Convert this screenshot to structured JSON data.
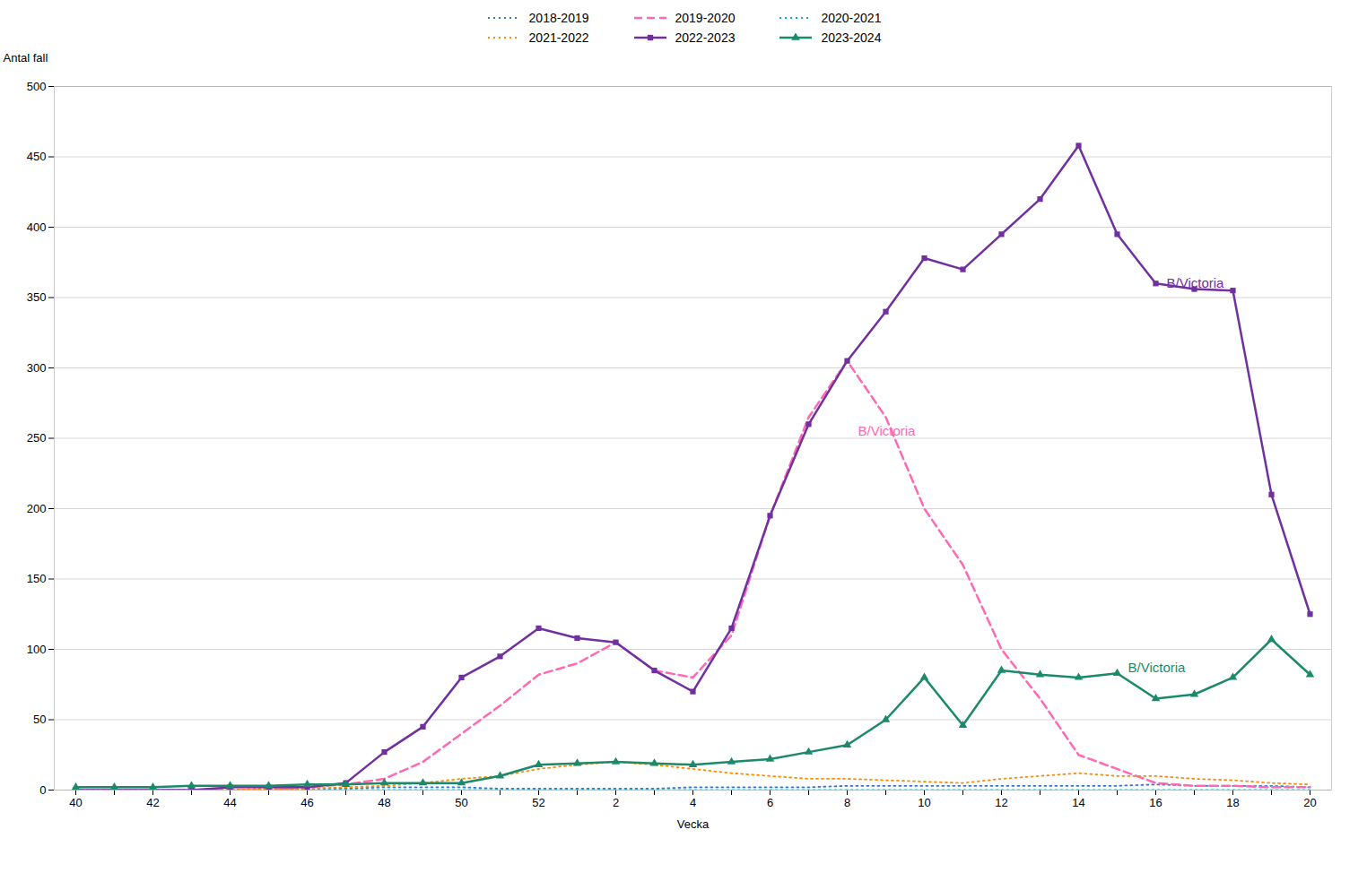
{
  "chart_data": {
    "type": "line",
    "xlabel": "Vecka",
    "ylabel": "Antal fall",
    "categories": [
      "40",
      null,
      "42",
      null,
      "44",
      null,
      "46",
      null,
      "48",
      null,
      "50",
      null,
      "52",
      null,
      "2",
      null,
      "4",
      null,
      "6",
      null,
      "8",
      null,
      "10",
      null,
      "12",
      null,
      "14",
      null,
      "16",
      null,
      "18",
      null,
      "20"
    ],
    "series": [
      {
        "name": "2018-2019",
        "color": "#4472C4",
        "line_style": "dotted",
        "values": [
          0,
          0,
          0,
          0,
          0,
          1,
          1,
          1,
          2,
          2,
          2,
          1,
          1,
          1,
          1,
          1,
          2,
          2,
          2,
          2,
          3,
          3,
          3,
          3,
          3,
          3,
          3,
          3,
          4,
          3,
          3,
          3,
          2
        ]
      },
      {
        "name": "2019-2020",
        "color": "#FF69B4",
        "line_style": "dashed",
        "values": [
          0,
          0,
          0,
          0,
          0,
          0,
          2,
          4,
          8,
          20,
          40,
          60,
          82,
          90,
          105,
          85,
          80,
          110,
          195,
          265,
          305,
          265,
          200,
          160,
          100,
          65,
          25,
          15,
          5,
          3,
          3,
          2,
          2
        ]
      },
      {
        "name": "2020-2021",
        "color": "#00B0C8",
        "line_style": "dotted",
        "values": [
          0,
          0,
          0,
          0,
          0,
          0,
          0,
          0,
          0,
          0,
          0,
          0,
          0,
          0,
          0,
          0,
          0,
          0,
          0,
          0,
          0,
          0,
          0,
          0,
          0,
          0,
          0,
          0,
          0,
          0,
          0,
          0,
          0
        ]
      },
      {
        "name": "2021-2022",
        "color": "#FF8C00",
        "line_style": "dotted",
        "values": [
          0,
          0,
          0,
          0,
          0,
          1,
          1,
          2,
          3,
          5,
          8,
          10,
          15,
          18,
          20,
          18,
          15,
          12,
          10,
          8,
          8,
          7,
          6,
          5,
          8,
          10,
          12,
          10,
          10,
          8,
          7,
          5,
          4
        ]
      },
      {
        "name": "2022-2023",
        "color": "#7030A0",
        "line_style": "solid",
        "marker": "square",
        "values": [
          0,
          0,
          0,
          0,
          2,
          2,
          2,
          5,
          27,
          45,
          80,
          95,
          115,
          108,
          105,
          85,
          70,
          115,
          195,
          260,
          305,
          340,
          378,
          370,
          395,
          420,
          458,
          395,
          360,
          356,
          355,
          210,
          125
        ]
      },
      {
        "name": "2023-2024",
        "color": "#1B8A6B",
        "line_style": "solid",
        "marker": "triangle",
        "values": [
          2,
          2,
          2,
          3,
          3,
          3,
          4,
          4,
          5,
          5,
          5,
          10,
          18,
          19,
          20,
          19,
          18,
          20,
          22,
          27,
          32,
          50,
          80,
          46,
          85,
          82,
          80,
          83,
          65,
          68,
          80,
          107,
          82
        ]
      }
    ],
    "ylim": [
      0,
      500
    ],
    "yticks": [
      0,
      50,
      100,
      150,
      200,
      250,
      300,
      350,
      400,
      450,
      500
    ],
    "grid": true,
    "legend": "top",
    "annotations": [
      {
        "text": "B/Victoria",
        "x": 28,
        "y": 360,
        "color": "#7030A0"
      },
      {
        "text": "B/Victoria",
        "x": 20,
        "y": 255,
        "color": "#FF69B4"
      },
      {
        "text": "B/Victoria",
        "x": 27,
        "y": 87,
        "color": "#1B8A6B"
      }
    ]
  }
}
